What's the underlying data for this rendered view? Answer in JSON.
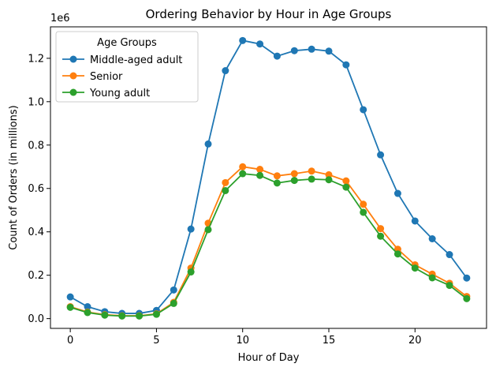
{
  "chart_data": {
    "type": "line",
    "title": "Ordering Behavior by Hour in Age Groups",
    "xlabel": "Hour of Day",
    "ylabel": "Count of Orders (in millions)",
    "y_offset_label": "1e6",
    "xlim": [
      -1.15,
      24.15
    ],
    "ylim": [
      -0.045,
      1.345
    ],
    "x_ticks": [
      0,
      5,
      10,
      15,
      20
    ],
    "y_ticks": [
      0.0,
      0.2,
      0.4,
      0.6,
      0.8,
      1.0,
      1.2
    ],
    "y_tick_labels": [
      "0.0",
      "0.2",
      "0.4",
      "0.6",
      "0.8",
      "1.0",
      "1.2"
    ],
    "grid": false,
    "legend": {
      "title": "Age Groups",
      "placement": "top-left"
    },
    "x": [
      0,
      1,
      2,
      3,
      4,
      5,
      6,
      7,
      8,
      9,
      10,
      11,
      12,
      13,
      14,
      15,
      16,
      17,
      18,
      19,
      20,
      21,
      22,
      23
    ],
    "series": [
      {
        "name": "Middle-aged adult",
        "color": "#1f77b4",
        "values": [
          0.1,
          0.055,
          0.032,
          0.024,
          0.024,
          0.038,
          0.132,
          0.413,
          0.805,
          1.143,
          1.282,
          1.266,
          1.21,
          1.235,
          1.242,
          1.233,
          1.17,
          0.963,
          0.755,
          0.577,
          0.45,
          0.368,
          0.295,
          0.187
        ]
      },
      {
        "name": "Senior",
        "color": "#ff7f0e",
        "values": [
          0.055,
          0.03,
          0.018,
          0.013,
          0.013,
          0.022,
          0.075,
          0.233,
          0.44,
          0.627,
          0.7,
          0.688,
          0.658,
          0.668,
          0.68,
          0.663,
          0.635,
          0.527,
          0.415,
          0.32,
          0.248,
          0.205,
          0.163,
          0.102
        ]
      },
      {
        "name": "Young adult",
        "color": "#2ca02c",
        "values": [
          0.052,
          0.028,
          0.016,
          0.012,
          0.012,
          0.02,
          0.07,
          0.215,
          0.41,
          0.59,
          0.668,
          0.66,
          0.625,
          0.637,
          0.643,
          0.64,
          0.606,
          0.49,
          0.38,
          0.298,
          0.233,
          0.188,
          0.153,
          0.092
        ]
      }
    ]
  }
}
